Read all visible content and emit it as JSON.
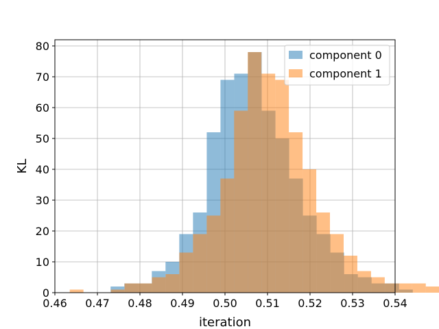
{
  "chart_data": {
    "type": "bar",
    "subtype": "histogram",
    "xlabel": "iteration",
    "ylabel": "KL",
    "xlim": [
      0.46,
      0.54
    ],
    "ylim": [
      0,
      82
    ],
    "xticks": [
      "0.46",
      "0.47",
      "0.48",
      "0.49",
      "0.50",
      "0.51",
      "0.52",
      "0.53",
      "0.54"
    ],
    "yticks": [
      "0",
      "10",
      "20",
      "30",
      "40",
      "50",
      "60",
      "70",
      "80"
    ],
    "grid": true,
    "legend_position": "top-right",
    "series": [
      {
        "name": "component 0",
        "color": "#1f77b4",
        "opacity": 0.5,
        "bin_start": 0.4731,
        "bin_width": 0.00323,
        "counts": [
          2,
          3,
          3,
          7,
          10,
          19,
          26,
          52,
          69,
          71,
          78,
          59,
          50,
          37,
          25,
          19,
          13,
          6,
          5,
          3,
          3,
          1,
          0,
          0,
          0,
          1
        ]
      },
      {
        "name": "component 1",
        "color": "#ff7f0e",
        "opacity": 0.5,
        "bin_start": 0.4635,
        "bin_width": 0.00322,
        "counts": [
          1,
          0,
          0,
          1,
          3,
          3,
          5,
          6,
          13,
          19,
          25,
          37,
          59,
          78,
          71,
          69,
          52,
          40,
          26,
          19,
          12,
          7,
          5,
          3,
          3,
          3,
          2
        ]
      }
    ]
  }
}
